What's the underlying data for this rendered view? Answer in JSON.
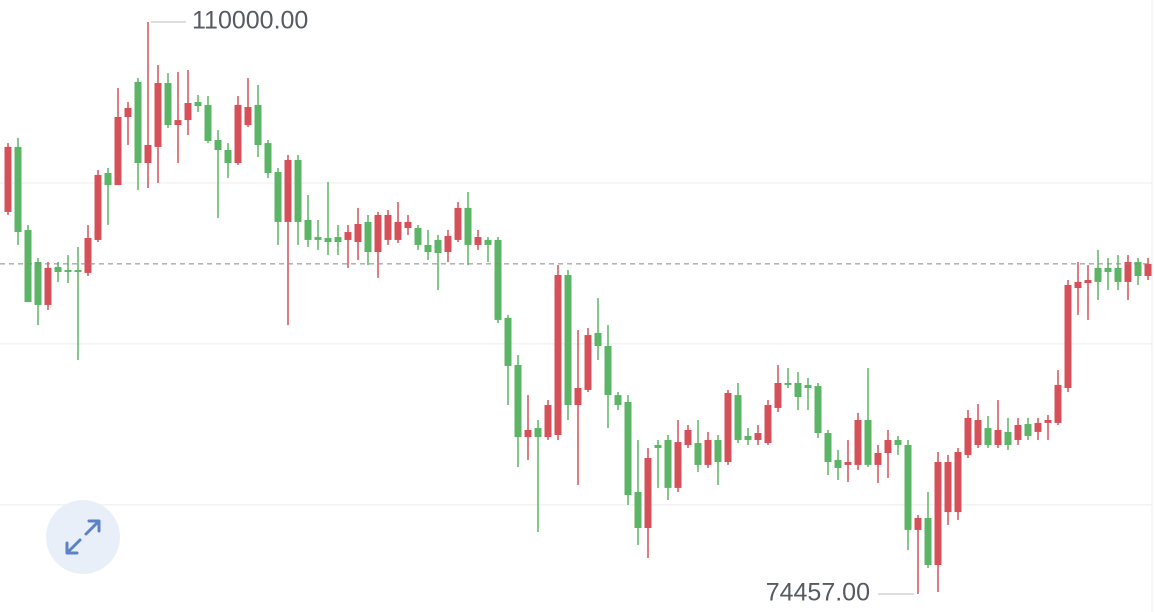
{
  "chart_data": {
    "type": "candlestick",
    "ylim": [
      73340,
      111370
    ],
    "grid_values": [
      100000,
      90000,
      80000
    ],
    "up_color": "#d6505a",
    "down_color": "#5cb566",
    "max_label": {
      "value": 110000,
      "label": "110000.00"
    },
    "min_label": {
      "value": 74457,
      "label": "74457.00"
    },
    "open": [
      98200,
      102240,
      97080,
      95090,
      92420,
      94780,
      94590,
      94590,
      94410,
      96460,
      100620,
      99870,
      104100,
      106280,
      101240,
      102240,
      106210,
      103600,
      103910,
      105030,
      104850,
      102670,
      102050,
      101240,
      103600,
      104850,
      102480,
      100680,
      97580,
      101430,
      97700,
      96640,
      96580,
      96640,
      96460,
      96330,
      97580,
      95710,
      96460,
      96460,
      97200,
      97200,
      96150,
      96460,
      95710,
      96460,
      98450,
      96150,
      96460,
      96460,
      91610,
      88690,
      84210,
      84770,
      84210,
      84340,
      94280,
      86200,
      87140,
      90680,
      89870,
      86820,
      86390,
      80800,
      78560,
      83720,
      84030,
      81050,
      83720,
      83840,
      82480,
      84030,
      82660,
      86820,
      84280,
      84030,
      83840,
      86020,
      87570,
      87570,
      87450,
      87380,
      84460,
      82790,
      82480,
      82480,
      85270,
      82480,
      83220,
      84030,
      83720,
      78440,
      79180,
      76260,
      79550,
      79550,
      83100,
      83720,
      84770,
      83720,
      84530,
      84030,
      85020,
      84530,
      85090,
      85090,
      87260,
      93470,
      93780,
      94720,
      94720,
      94720,
      93850,
      95090,
      94220
    ],
    "high": [
      102480,
      102800,
      97390,
      95340,
      95090,
      95090,
      95520,
      96020,
      97390,
      100810,
      100930,
      105900,
      105030,
      106520,
      110000,
      107330,
      106830,
      106900,
      107020,
      105470,
      105400,
      103290,
      102480,
      105400,
      106520,
      106090,
      102670,
      100930,
      101740,
      101740,
      99250,
      97700,
      100060,
      97390,
      97390,
      98450,
      98010,
      98200,
      98320,
      98820,
      98010,
      97390,
      97080,
      96770,
      97080,
      98820,
      99440,
      97080,
      96640,
      96640,
      91800,
      89310,
      86820,
      85270,
      86510,
      94900,
      94590,
      90860,
      90990,
      92850,
      91170,
      87010,
      86820,
      84030,
      83530,
      84030,
      84340,
      85270,
      84960,
      85270,
      84530,
      84340,
      87140,
      87570,
      84770,
      84960,
      86510,
      88690,
      88500,
      88250,
      87880,
      87570,
      84650,
      83410,
      84030,
      85710,
      88500,
      83720,
      84650,
      84280,
      84030,
      79370,
      80800,
      83280,
      83100,
      83530,
      85890,
      86270,
      85520,
      86510,
      85400,
      85400,
      85400,
      85400,
      85580,
      88380,
      93970,
      95090,
      94900,
      95840,
      95340,
      95520,
      95520,
      95340,
      95340
    ],
    "low": [
      98010,
      96150,
      92600,
      91170,
      92110,
      93850,
      93780,
      89000,
      94220,
      96330,
      97390,
      99870,
      102360,
      99560,
      99690,
      100000,
      103420,
      101240,
      102980,
      104410,
      102480,
      97820,
      100310,
      101120,
      103480,
      101610,
      100310,
      96150,
      91170,
      96150,
      96020,
      95840,
      95520,
      95520,
      94720,
      95210,
      94900,
      94100,
      96150,
      96270,
      96770,
      95840,
      95210,
      93350,
      95090,
      96330,
      94900,
      95840,
      95090,
      91300,
      86200,
      82350,
      82790,
      78310,
      84030,
      84030,
      85270,
      81230,
      87010,
      89000,
      84770,
      85890,
      79990,
      77500,
      76700,
      81050,
      80300,
      80800,
      83530,
      82040,
      82290,
      81230,
      82480,
      83840,
      83720,
      83720,
      83720,
      85770,
      87260,
      85890,
      85890,
      84150,
      81850,
      81540,
      81420,
      82160,
      82350,
      81360,
      81670,
      83100,
      77190,
      74457,
      76070,
      74580,
      78750,
      79060,
      82910,
      83530,
      83530,
      83530,
      83410,
      83720,
      84030,
      84030,
      84030,
      84960,
      87010,
      91800,
      91490,
      92730,
      93350,
      93350,
      92730,
      93660,
      93970
    ],
    "close": [
      102240,
      96950,
      92600,
      92420,
      94720,
      94470,
      94470,
      94470,
      96580,
      100500,
      99870,
      104100,
      104660,
      101240,
      102360,
      106210,
      103600,
      103910,
      104970,
      104780,
      102610,
      102050,
      101240,
      104850,
      104720,
      102360,
      100620,
      97580,
      101430,
      97580,
      96460,
      96460,
      96330,
      96330,
      96950,
      97450,
      95710,
      98010,
      98010,
      97580,
      97580,
      96150,
      95710,
      95650,
      96710,
      98450,
      96150,
      96640,
      96150,
      91490,
      88630,
      84210,
      84650,
      84210,
      86200,
      94280,
      86200,
      87260,
      90550,
      89870,
      86820,
      86200,
      80610,
      78560,
      82910,
      83530,
      81050,
      83900,
      84650,
      82480,
      84030,
      82660,
      86950,
      84030,
      84030,
      84460,
      86200,
      87570,
      87450,
      86700,
      87260,
      84460,
      82660,
      82290,
      82660,
      85270,
      82480,
      83220,
      84030,
      83720,
      78440,
      79180,
      76260,
      82660,
      82660,
      83280,
      85400,
      85270,
      83720,
      84650,
      83720,
      84960,
      84280,
      85090,
      85270,
      87450,
      93660,
      93850,
      93970,
      93850,
      94470,
      93850,
      95090,
      94220,
      94970
    ]
  }
}
